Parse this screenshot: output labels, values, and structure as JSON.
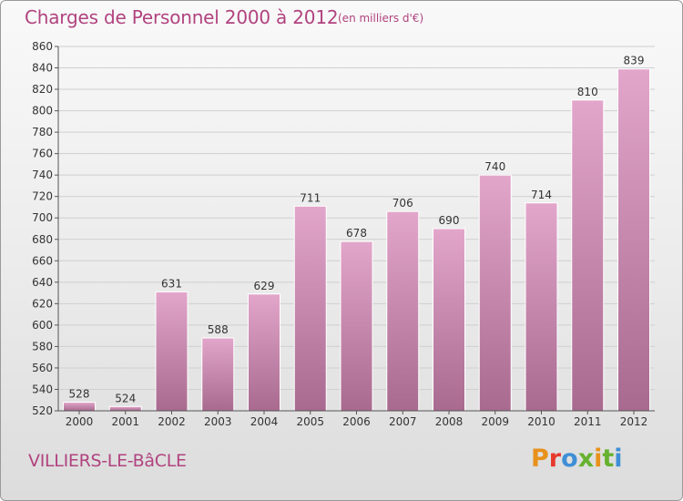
{
  "header": {
    "title": "Charges de Personnel 2000 à 2012",
    "subtitle": "(en milliers d'€)"
  },
  "footer": {
    "commune": "VILLIERS-LE-BâCLE",
    "logo_text": "Proxiti"
  },
  "colors": {
    "accent": "#b1437f",
    "bar_top": "#e3a6cb",
    "bar_bottom": "#a86a8f",
    "grid": "#cfcfcf",
    "logo_letters": [
      "#e8911b",
      "#e63a2e",
      "#3f8fd6",
      "#66b12e",
      "#e8911b",
      "#66b12e",
      "#3f8fd6"
    ]
  },
  "chart_data": {
    "type": "bar",
    "title": "Charges de Personnel 2000 à 2012",
    "subtitle": "(en milliers d'€)",
    "categories": [
      "2000",
      "2001",
      "2002",
      "2003",
      "2004",
      "2005",
      "2006",
      "2007",
      "2008",
      "2009",
      "2010",
      "2011",
      "2012"
    ],
    "values": [
      528,
      524,
      631,
      588,
      629,
      711,
      678,
      706,
      690,
      740,
      714,
      810,
      839
    ],
    "xlabel": "",
    "ylabel": "",
    "ylim": [
      520,
      860
    ],
    "yticks": [
      520,
      540,
      560,
      580,
      600,
      620,
      640,
      660,
      680,
      700,
      720,
      740,
      760,
      780,
      800,
      820,
      840,
      860
    ],
    "grid": true,
    "legend": "none"
  }
}
